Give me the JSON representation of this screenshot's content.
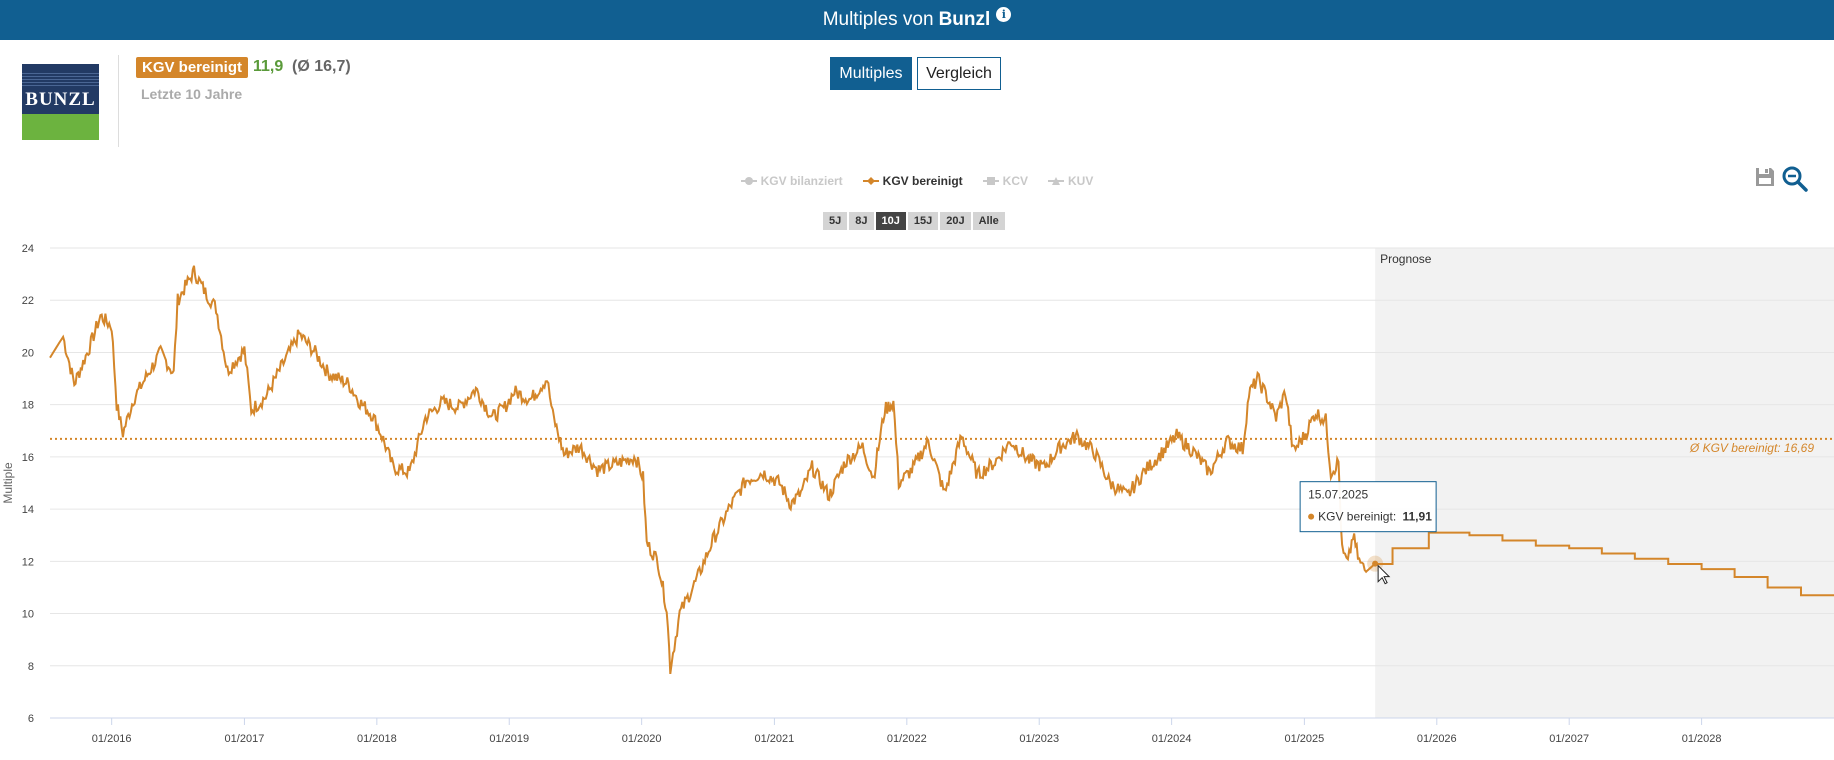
{
  "header": {
    "title_prefix": "Multiples von",
    "company": "Bunzl",
    "info_icon": "info-icon"
  },
  "logo": {
    "text": "BUNZL",
    "colors": {
      "top": "#223a64",
      "bottom": "#6cb33f"
    }
  },
  "metric": {
    "badge": "KGV bereinigt",
    "value": "11,9",
    "average": "(Ø 16,7)",
    "period": "Letzte 10 Jahre"
  },
  "view_toggle": {
    "active": "Multiples",
    "inactive": "Vergleich"
  },
  "legend": [
    {
      "label": "KGV bilanziert",
      "active": false,
      "marker": "circle"
    },
    {
      "label": "KGV bereinigt",
      "active": true,
      "marker": "diamond"
    },
    {
      "label": "KCV",
      "active": false,
      "marker": "square"
    },
    {
      "label": "KUV",
      "active": false,
      "marker": "triangle"
    }
  ],
  "ranges": [
    {
      "label": "5J",
      "selected": false
    },
    {
      "label": "8J",
      "selected": false
    },
    {
      "label": "10J",
      "selected": true
    },
    {
      "label": "15J",
      "selected": false
    },
    {
      "label": "20J",
      "selected": false
    },
    {
      "label": "Alle",
      "selected": false
    }
  ],
  "tools": {
    "save_icon": "save-icon",
    "zoom_out_icon": "zoom-out-icon"
  },
  "tooltip": {
    "date": "15.07.2025",
    "series": "KGV bereinigt:",
    "value": "11,91"
  },
  "chart_data": {
    "type": "line",
    "ylabel": "Multiple",
    "ylim": [
      6,
      24
    ],
    "yticks": [
      6,
      8,
      10,
      12,
      14,
      16,
      18,
      20,
      22,
      24
    ],
    "xlim": [
      "2015-07-15",
      "2028-12-31"
    ],
    "xticks": [
      "01/2016",
      "01/2017",
      "01/2018",
      "01/2019",
      "01/2020",
      "01/2021",
      "01/2022",
      "01/2023",
      "01/2024",
      "01/2025",
      "01/2026",
      "01/2027",
      "01/2028"
    ],
    "forecast_label": "Prognose",
    "forecast_start": "2025-07-15",
    "average": {
      "label": "Ø KGV bereinigt: 16,69",
      "value": 16.69
    },
    "color": "#d4862a",
    "grid": true,
    "series": [
      {
        "name": "KGV bereinigt",
        "history": [
          [
            "2015-07-15",
            19.8
          ],
          [
            "2015-08-20",
            20.6
          ],
          [
            "2015-09-20",
            18.8
          ],
          [
            "2015-11-01",
            20.2
          ],
          [
            "2015-12-01",
            21.4
          ],
          [
            "2016-01-01",
            21.0
          ],
          [
            "2016-01-15",
            18.0
          ],
          [
            "2016-02-01",
            16.9
          ],
          [
            "2016-03-01",
            18.2
          ],
          [
            "2016-04-15",
            19.3
          ],
          [
            "2016-05-15",
            20.0
          ],
          [
            "2016-06-20",
            19.2
          ],
          [
            "2016-07-01",
            22.0
          ],
          [
            "2016-08-15",
            23.1
          ],
          [
            "2016-09-15",
            22.3
          ],
          [
            "2016-10-15",
            21.7
          ],
          [
            "2016-11-15",
            19.3
          ],
          [
            "2016-12-15",
            19.8
          ],
          [
            "2017-01-01",
            20.1
          ],
          [
            "2017-01-20",
            17.8
          ],
          [
            "2017-03-01",
            18.3
          ],
          [
            "2017-04-15",
            19.5
          ],
          [
            "2017-06-01",
            20.7
          ],
          [
            "2017-07-15",
            20.0
          ],
          [
            "2017-08-20",
            19.2
          ],
          [
            "2017-10-15",
            18.8
          ],
          [
            "2017-11-15",
            18.1
          ],
          [
            "2017-12-20",
            17.6
          ],
          [
            "2018-01-15",
            16.8
          ],
          [
            "2018-02-15",
            15.6
          ],
          [
            "2018-04-01",
            15.4
          ],
          [
            "2018-05-15",
            17.5
          ],
          [
            "2018-07-01",
            18.1
          ],
          [
            "2018-08-15",
            17.9
          ],
          [
            "2018-10-01",
            18.6
          ],
          [
            "2018-11-15",
            17.5
          ],
          [
            "2018-12-20",
            17.9
          ],
          [
            "2019-01-15",
            18.5
          ],
          [
            "2019-03-01",
            18.2
          ],
          [
            "2019-04-15",
            19.0
          ],
          [
            "2019-05-01",
            17.6
          ],
          [
            "2019-06-01",
            16.1
          ],
          [
            "2019-07-15",
            16.4
          ],
          [
            "2019-09-01",
            15.5
          ],
          [
            "2019-10-15",
            15.7
          ],
          [
            "2019-12-15",
            16.0
          ],
          [
            "2020-01-05",
            15.2
          ],
          [
            "2020-01-15",
            12.7
          ],
          [
            "2020-02-15",
            12.0
          ],
          [
            "2020-03-10",
            10.2
          ],
          [
            "2020-03-20",
            7.9
          ],
          [
            "2020-04-15",
            10.0
          ],
          [
            "2020-06-01",
            11.3
          ],
          [
            "2020-07-15",
            12.8
          ],
          [
            "2020-09-01",
            14.1
          ],
          [
            "2020-10-15",
            15.1
          ],
          [
            "2020-12-01",
            15.4
          ],
          [
            "2021-01-15",
            15.0
          ],
          [
            "2021-02-15",
            14.2
          ],
          [
            "2021-03-15",
            14.6
          ],
          [
            "2021-04-15",
            15.6
          ],
          [
            "2021-06-01",
            14.5
          ],
          [
            "2021-07-15",
            15.8
          ],
          [
            "2021-09-01",
            16.4
          ],
          [
            "2021-10-01",
            15.2
          ],
          [
            "2021-11-01",
            17.8
          ],
          [
            "2021-11-25",
            18.1
          ],
          [
            "2021-12-10",
            15.0
          ],
          [
            "2022-01-15",
            15.5
          ],
          [
            "2022-03-01",
            16.6
          ],
          [
            "2022-04-15",
            14.6
          ],
          [
            "2022-06-01",
            16.8
          ],
          [
            "2022-07-15",
            15.3
          ],
          [
            "2022-09-01",
            15.8
          ],
          [
            "2022-10-15",
            16.6
          ],
          [
            "2022-12-01",
            15.9
          ],
          [
            "2023-01-15",
            15.6
          ],
          [
            "2023-03-01",
            16.4
          ],
          [
            "2023-04-15",
            16.8
          ],
          [
            "2023-06-01",
            16.2
          ],
          [
            "2023-07-15",
            15.0
          ],
          [
            "2023-09-01",
            14.5
          ],
          [
            "2023-10-15",
            15.4
          ],
          [
            "2023-12-01",
            16.1
          ],
          [
            "2024-01-15",
            16.8
          ],
          [
            "2024-03-01",
            16.2
          ],
          [
            "2024-04-15",
            15.4
          ],
          [
            "2024-06-01",
            16.6
          ],
          [
            "2024-07-15",
            16.3
          ],
          [
            "2024-08-01",
            18.4
          ],
          [
            "2024-08-25",
            19.0
          ],
          [
            "2024-09-20",
            18.3
          ],
          [
            "2024-10-15",
            17.5
          ],
          [
            "2024-11-10",
            18.5
          ],
          [
            "2024-12-01",
            16.2
          ],
          [
            "2025-01-01",
            16.8
          ],
          [
            "2025-02-01",
            17.7
          ],
          [
            "2025-03-01",
            17.4
          ],
          [
            "2025-03-15",
            15.4
          ],
          [
            "2025-04-05",
            15.8
          ],
          [
            "2025-04-15",
            12.4
          ],
          [
            "2025-05-01",
            11.9
          ],
          [
            "2025-05-15",
            13.0
          ],
          [
            "2025-06-01",
            12.0
          ],
          [
            "2025-06-20",
            11.6
          ],
          [
            "2025-07-15",
            11.91
          ]
        ],
        "forecast": [
          [
            "2025-07-15",
            11.9
          ],
          [
            "2025-09-01",
            12.5
          ],
          [
            "2025-12-10",
            13.1
          ],
          [
            "2026-04-01",
            13.0
          ],
          [
            "2026-07-01",
            12.8
          ],
          [
            "2026-10-01",
            12.6
          ],
          [
            "2027-01-01",
            12.5
          ],
          [
            "2027-04-01",
            12.3
          ],
          [
            "2027-07-01",
            12.1
          ],
          [
            "2027-10-01",
            11.9
          ],
          [
            "2028-01-01",
            11.7
          ],
          [
            "2028-04-01",
            11.4
          ],
          [
            "2028-07-01",
            11.0
          ],
          [
            "2028-10-01",
            10.7
          ],
          [
            "2028-12-31",
            10.7
          ]
        ]
      }
    ]
  }
}
